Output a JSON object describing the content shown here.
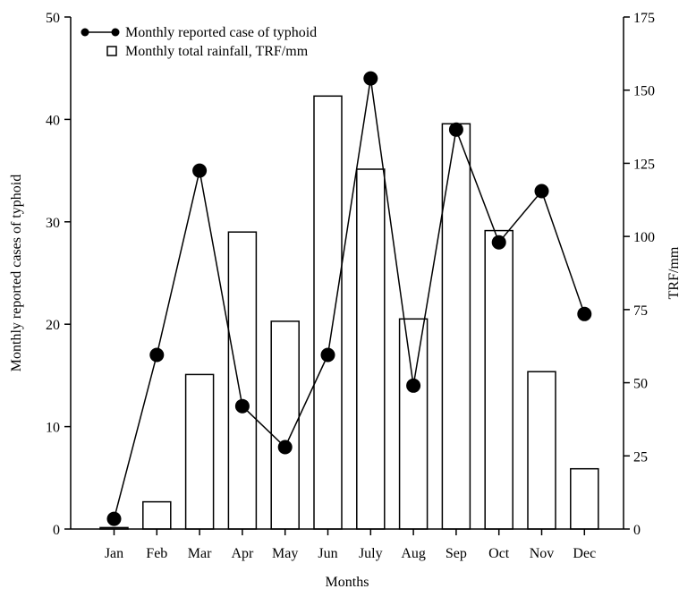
{
  "chart_data": {
    "type": "bar+line",
    "categories": [
      "Jan",
      "Feb",
      "Mar",
      "Apr",
      "May",
      "Jun",
      "July",
      "Aug",
      "Sep",
      "Oct",
      "Nov",
      "Dec"
    ],
    "series": [
      {
        "name": "Monthly reported case of typhoid",
        "type": "line",
        "axis": "left",
        "values": [
          1,
          17,
          35,
          12,
          8,
          17,
          44,
          14,
          39,
          28,
          33,
          21
        ]
      },
      {
        "name": "Monthly total rainfall, TRF/mm",
        "type": "bar",
        "axis": "right",
        "values": [
          0.5,
          9.3,
          52.8,
          101.5,
          71,
          148,
          123,
          71.8,
          138.5,
          102,
          53.8,
          20.6
        ]
      }
    ],
    "xlabel": "Months",
    "ylabel": "Monthly reported cases of typhoid",
    "y2label": "TRF/mm",
    "ylim": [
      0,
      50
    ],
    "y2lim": [
      0,
      175
    ],
    "yticks": [
      0,
      10,
      20,
      30,
      40,
      50
    ],
    "y2ticks": [
      0,
      25,
      50,
      75,
      100,
      125,
      150,
      175
    ],
    "grid": false,
    "legend": "top-left"
  }
}
